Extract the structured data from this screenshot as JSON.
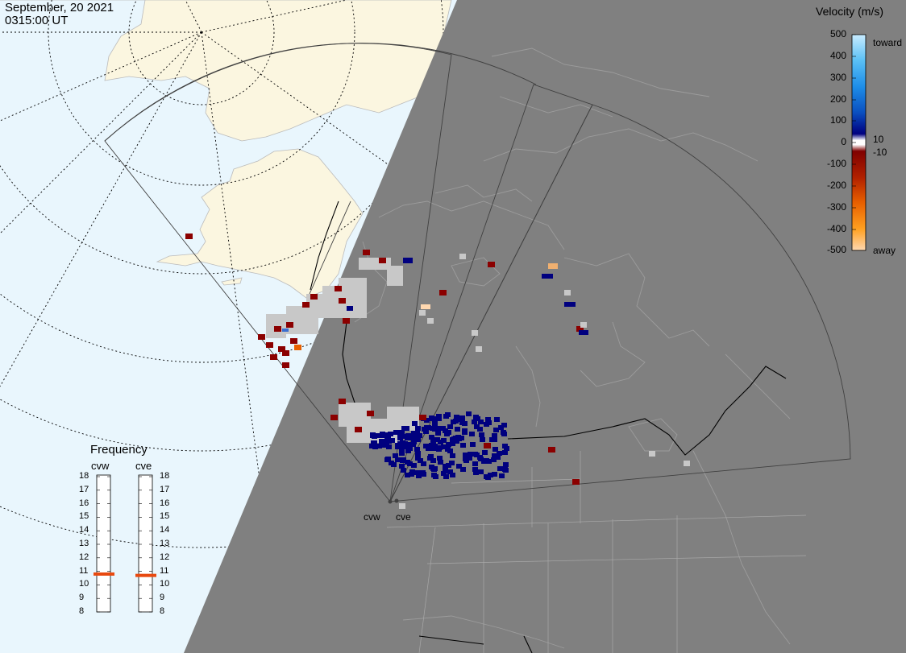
{
  "header": {
    "date": "September, 20 2021",
    "time": "0315:00 UT"
  },
  "velocity_legend": {
    "title": "Velocity (m/s)",
    "ticks": [
      "500",
      "400",
      "300",
      "200",
      "100",
      "0",
      "-100",
      "-200",
      "-300",
      "-400",
      "-500"
    ],
    "extra_ticks": [
      "10",
      "-10"
    ],
    "toward_label": "toward",
    "away_label": "away"
  },
  "frequency": {
    "title": "Frequency",
    "left_label": "cvw",
    "right_label": "cve",
    "ticks": [
      "18",
      "17",
      "16",
      "15",
      "14",
      "13",
      "12",
      "11",
      "10",
      "9",
      "8"
    ],
    "cvw_value": 10.8,
    "cve_value": 10.7
  },
  "sites": [
    {
      "name": "cvw"
    },
    {
      "name": "cve"
    }
  ],
  "colors": {
    "ocean": "#e9f6fd",
    "land_day": "#fbf6e0",
    "night": "#808080",
    "coast_night": "#9c9c9c",
    "ground_scatter": "#c8c8c8",
    "toward": "#00007f",
    "away": "#8b0000",
    "freq_marker": "#e8490f"
  }
}
